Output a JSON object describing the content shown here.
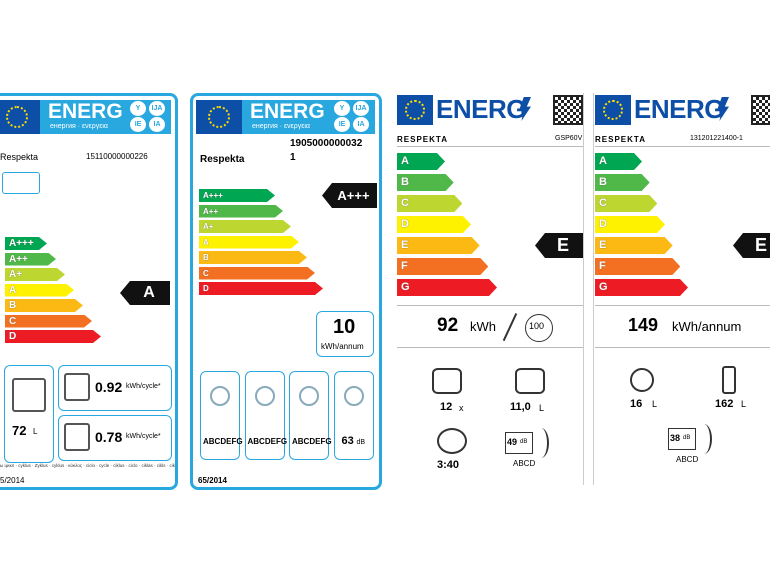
{
  "labels": [
    {
      "header": {
        "title": "ENERG",
        "subtitle": "енергия · ενεργεια",
        "badges": [
          "Y",
          "IJA",
          "IE",
          "IA"
        ]
      },
      "brand": "Respekta",
      "model": "15110000000226",
      "classes": [
        "A+++",
        "A++",
        "A+",
        "A",
        "B",
        "C",
        "D"
      ],
      "rating": "A",
      "volume": {
        "value": "72",
        "unit": "L"
      },
      "consumption": [
        {
          "value": "0.92",
          "unit": "kWh/cycle*"
        },
        {
          "value": "0.78",
          "unit": "kWh/cycle*"
        }
      ],
      "languages": "ы цикл · cyklus · Zyklus · cyklus · κύκλος · ciclo · cycle · ciklus · ciclo · ciklas · cikls · ciklus",
      "regulation": "5/2014"
    },
    {
      "header": {
        "title": "ENERG",
        "subtitle": "енергия · ενεργεια",
        "badges": [
          "Y",
          "IJA",
          "IE",
          "IA"
        ]
      },
      "brand": "Respekta",
      "model": "1905000000032",
      "model_line2": "1",
      "classes": [
        "A+++",
        "A++",
        "A+",
        "A",
        "B",
        "C",
        "D"
      ],
      "rating": "A+++",
      "consumption": {
        "value": "10",
        "unit": "kWh/annum"
      },
      "features": [
        {
          "scale": "ABCDEFG"
        },
        {
          "scale": "ABCDEFG"
        },
        {
          "scale": "ABCDEFG"
        },
        {
          "value": "63",
          "unit": "dB"
        }
      ],
      "regulation": "65/2014"
    },
    {
      "header": {
        "title": "ENERG"
      },
      "brand": "RESPEKTA",
      "model": "GSP60V",
      "classes": [
        "A",
        "B",
        "C",
        "D",
        "E",
        "F",
        "G"
      ],
      "rating": "E",
      "consumption": {
        "value": "92",
        "unit": "kWh"
      },
      "cycles": "100",
      "features": [
        {
          "value": "12",
          "unit": "x"
        },
        {
          "value": "11,0",
          "unit": "L"
        },
        {
          "value": "3:40"
        },
        {
          "value": "49",
          "unit": "dB",
          "scale": "ABCD"
        }
      ]
    },
    {
      "header": {
        "title": "ENERG"
      },
      "brand": "RESPEKTA",
      "model": "131201221400-1",
      "classes": [
        "A",
        "B",
        "C",
        "D",
        "E",
        "F",
        "G"
      ],
      "rating": "E",
      "consumption": {
        "value": "149",
        "unit": "kWh/annum"
      },
      "features": [
        {
          "value": "16",
          "unit": "L"
        },
        {
          "value": "162",
          "unit": "L"
        },
        {
          "value": "38",
          "unit": "dB",
          "scale": "ABCD"
        }
      ]
    }
  ]
}
